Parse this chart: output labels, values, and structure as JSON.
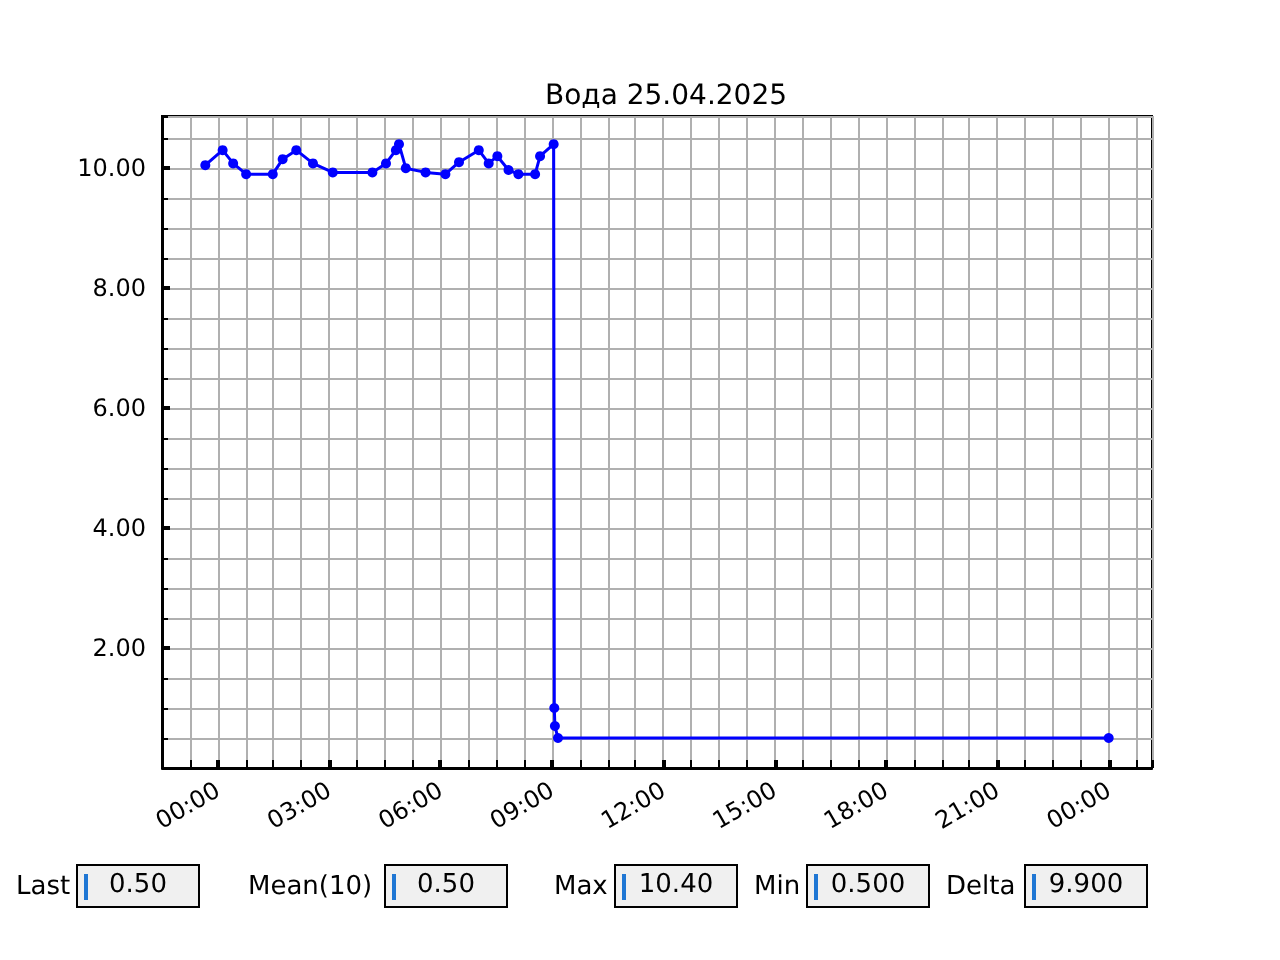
{
  "chart_data": {
    "type": "line",
    "title": "Вода 25.04.2025",
    "x": [
      "2025-04-24T23:40",
      "2025-04-25T00:08",
      "2025-04-25T00:25",
      "2025-04-25T00:46",
      "2025-04-25T01:29",
      "2025-04-25T01:45",
      "2025-04-25T02:07",
      "2025-04-25T02:34",
      "2025-04-25T03:06",
      "2025-04-25T04:10",
      "2025-04-25T04:32",
      "2025-04-25T04:48",
      "2025-04-25T04:53",
      "2025-04-25T05:04",
      "2025-04-25T05:36",
      "2025-04-25T06:08",
      "2025-04-25T06:30",
      "2025-04-25T07:02",
      "2025-04-25T07:18",
      "2025-04-25T07:32",
      "2025-04-25T07:50",
      "2025-04-25T08:06",
      "2025-04-25T08:33",
      "2025-04-25T08:41",
      "2025-04-25T09:03",
      "2025-04-25T09:04",
      "2025-04-25T09:05",
      "2025-04-25T09:10",
      "2025-04-26T00:00"
    ],
    "series": [
      {
        "color": "#0000ff",
        "values": [
          10.05,
          10.3,
          10.08,
          9.9,
          9.9,
          10.15,
          10.3,
          10.08,
          9.93,
          9.93,
          10.08,
          10.3,
          10.4,
          10.0,
          9.93,
          9.9,
          10.1,
          10.3,
          10.08,
          10.2,
          9.97,
          9.9,
          9.9,
          10.2,
          10.4,
          1.0,
          0.7,
          0.5,
          0.5
        ]
      }
    ],
    "xlim": [
      "2025-04-24T22:30",
      "2025-04-26T01:10"
    ],
    "xticks": [
      {
        "value": "2025-04-25T00:00",
        "label": "00:00"
      },
      {
        "value": "2025-04-25T03:00",
        "label": "03:00"
      },
      {
        "value": "2025-04-25T06:00",
        "label": "06:00"
      },
      {
        "value": "2025-04-25T09:00",
        "label": "09:00"
      },
      {
        "value": "2025-04-25T12:00",
        "label": "12:00"
      },
      {
        "value": "2025-04-25T15:00",
        "label": "15:00"
      },
      {
        "value": "2025-04-25T18:00",
        "label": "18:00"
      },
      {
        "value": "2025-04-25T21:00",
        "label": "21:00"
      },
      {
        "value": "2025-04-26T00:00",
        "label": "00:00"
      }
    ],
    "ylim": [
      0,
      10.87
    ],
    "yticks": [
      {
        "value": 2,
        "label": "2.00"
      },
      {
        "value": 4,
        "label": "4.00"
      },
      {
        "value": 6,
        "label": "6.00"
      },
      {
        "value": 8,
        "label": "8.00"
      },
      {
        "value": 10,
        "label": "10.00"
      }
    ],
    "grid": true,
    "marker": "circle",
    "line_style": "solid",
    "annotations": [
      "Last",
      "0.50",
      "Mean(10)",
      "0.50",
      "Max",
      "10.40",
      "Min",
      "0.500",
      "Delta",
      "9.900"
    ]
  }
}
